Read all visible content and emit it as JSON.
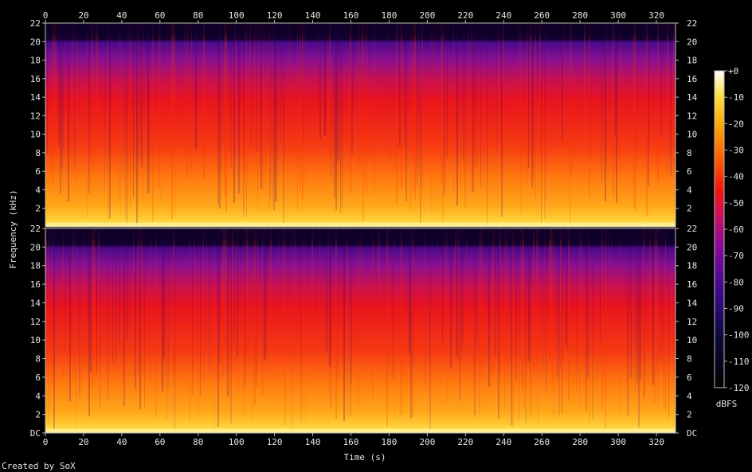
{
  "chart_data": {
    "type": "heatmap",
    "title": "",
    "xlabel": "Time (s)",
    "ylabel": "Frequency (kHz)",
    "x_ticks": [
      0,
      20,
      40,
      60,
      80,
      100,
      120,
      140,
      160,
      180,
      200,
      220,
      240,
      260,
      280,
      300,
      320
    ],
    "xlim": [
      0,
      330
    ],
    "y_ticks": [
      "DC",
      2,
      4,
      6,
      8,
      10,
      12,
      14,
      16,
      18,
      20,
      22
    ],
    "ylim": [
      0,
      22
    ],
    "channels": [
      {
        "channel": 1
      },
      {
        "channel": 2
      }
    ],
    "colorbar": {
      "label": "dBFS",
      "ticks": [
        "+0",
        -10,
        -20,
        -30,
        -40,
        -50,
        -60,
        -70,
        -80,
        -90,
        -100,
        -110,
        -120
      ],
      "range": [
        -120,
        0
      ]
    },
    "colors": [
      "#000000",
      "#1a0050",
      "#5b0a9e",
      "#a0108a",
      "#e01228",
      "#ff4400",
      "#ff8c00",
      "#ffd020",
      "#ffffb0",
      "#ffffff"
    ]
  },
  "footer": {
    "credit": "Created by SoX"
  }
}
